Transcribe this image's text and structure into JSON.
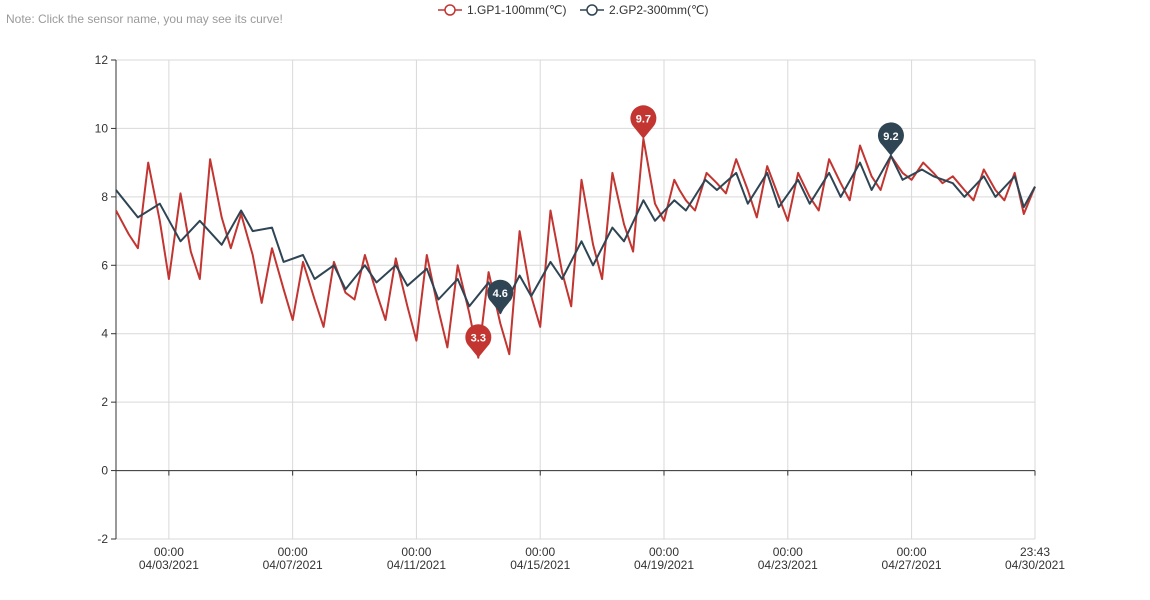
{
  "note": "Note: Click the sensor name, you may see its curve!",
  "colors": {
    "series1": "#c23531",
    "series2": "#2f4554",
    "grid": "#d9d9d9",
    "axis": "#333333"
  },
  "chart_data": {
    "type": "line",
    "title": "",
    "xlabel": "",
    "ylabel": "",
    "ylim": [
      -2,
      12
    ],
    "yticks": [
      -2,
      0,
      2,
      4,
      6,
      8,
      10,
      12
    ],
    "xlim": [
      "2021-04-01T07:00",
      "2021-04-30T23:43"
    ],
    "xticks": [
      {
        "time": "2021-04-03T00:00",
        "label1": "00:00",
        "label2": "04/03/2021"
      },
      {
        "time": "2021-04-07T00:00",
        "label1": "00:00",
        "label2": "04/07/2021"
      },
      {
        "time": "2021-04-11T00:00",
        "label1": "00:00",
        "label2": "04/11/2021"
      },
      {
        "time": "2021-04-15T00:00",
        "label1": "00:00",
        "label2": "04/15/2021"
      },
      {
        "time": "2021-04-19T00:00",
        "label1": "00:00",
        "label2": "04/19/2021"
      },
      {
        "time": "2021-04-23T00:00",
        "label1": "00:00",
        "label2": "04/23/2021"
      },
      {
        "time": "2021-04-27T00:00",
        "label1": "00:00",
        "label2": "04/27/2021"
      },
      {
        "time": "2021-04-30T23:43",
        "label1": "23:43",
        "label2": "04/30/2021"
      }
    ],
    "grid": true,
    "legend_position": "top-center",
    "series": [
      {
        "name": "1.GP1-100mm(℃)",
        "color": "#c23531",
        "points": [
          [
            "2021-04-01T07:00",
            7.6
          ],
          [
            "2021-04-01T17:00",
            6.9
          ],
          [
            "2021-04-02T00:00",
            6.5
          ],
          [
            "2021-04-02T08:00",
            9.0
          ],
          [
            "2021-04-02T17:00",
            7.3
          ],
          [
            "2021-04-03T00:00",
            5.6
          ],
          [
            "2021-04-03T09:00",
            8.1
          ],
          [
            "2021-04-03T17:00",
            6.4
          ],
          [
            "2021-04-04T00:00",
            5.6
          ],
          [
            "2021-04-04T08:00",
            9.1
          ],
          [
            "2021-04-04T17:00",
            7.4
          ],
          [
            "2021-04-05T00:00",
            6.5
          ],
          [
            "2021-04-05T08:00",
            7.5
          ],
          [
            "2021-04-05T17:00",
            6.3
          ],
          [
            "2021-04-06T00:00",
            4.9
          ],
          [
            "2021-04-06T08:00",
            6.5
          ],
          [
            "2021-04-06T17:00",
            5.3
          ],
          [
            "2021-04-07T00:00",
            4.4
          ],
          [
            "2021-04-07T08:00",
            6.1
          ],
          [
            "2021-04-07T17:00",
            5.0
          ],
          [
            "2021-04-08T00:00",
            4.2
          ],
          [
            "2021-04-08T08:00",
            6.1
          ],
          [
            "2021-04-08T17:00",
            5.2
          ],
          [
            "2021-04-09T00:00",
            5.0
          ],
          [
            "2021-04-09T08:00",
            6.3
          ],
          [
            "2021-04-09T17:00",
            5.2
          ],
          [
            "2021-04-10T00:00",
            4.4
          ],
          [
            "2021-04-10T08:00",
            6.2
          ],
          [
            "2021-04-10T17:00",
            4.8
          ],
          [
            "2021-04-11T00:00",
            3.8
          ],
          [
            "2021-04-11T08:00",
            6.3
          ],
          [
            "2021-04-11T17:00",
            4.7
          ],
          [
            "2021-04-12T00:00",
            3.6
          ],
          [
            "2021-04-12T08:00",
            6.0
          ],
          [
            "2021-04-12T17:00",
            4.6
          ],
          [
            "2021-04-13T00:00",
            3.3
          ],
          [
            "2021-04-13T08:00",
            5.8
          ],
          [
            "2021-04-13T17:00",
            4.3
          ],
          [
            "2021-04-14T00:00",
            3.4
          ],
          [
            "2021-04-14T08:00",
            7.0
          ],
          [
            "2021-04-14T17:00",
            5.1
          ],
          [
            "2021-04-15T00:00",
            4.2
          ],
          [
            "2021-04-15T08:00",
            7.6
          ],
          [
            "2021-04-15T17:00",
            5.8
          ],
          [
            "2021-04-16T00:00",
            4.8
          ],
          [
            "2021-04-16T08:00",
            8.5
          ],
          [
            "2021-04-16T17:00",
            6.6
          ],
          [
            "2021-04-17T00:00",
            5.6
          ],
          [
            "2021-04-17T08:00",
            8.7
          ],
          [
            "2021-04-17T17:00",
            7.2
          ],
          [
            "2021-04-18T00:00",
            6.4
          ],
          [
            "2021-04-18T08:00",
            9.7
          ],
          [
            "2021-04-18T17:00",
            7.8
          ],
          [
            "2021-04-19T00:00",
            7.3
          ],
          [
            "2021-04-19T08:00",
            8.5
          ],
          [
            "2021-04-19T12:00",
            8.2
          ],
          [
            "2021-04-19T17:00",
            7.9
          ],
          [
            "2021-04-20T00:00",
            7.6
          ],
          [
            "2021-04-20T09:00",
            8.7
          ],
          [
            "2021-04-20T17:00",
            8.4
          ],
          [
            "2021-04-21T00:00",
            8.1
          ],
          [
            "2021-04-21T08:00",
            9.1
          ],
          [
            "2021-04-21T17:00",
            8.2
          ],
          [
            "2021-04-22T00:00",
            7.4
          ],
          [
            "2021-04-22T08:00",
            8.9
          ],
          [
            "2021-04-22T17:00",
            8.0
          ],
          [
            "2021-04-23T00:00",
            7.3
          ],
          [
            "2021-04-23T08:00",
            8.7
          ],
          [
            "2021-04-23T17:00",
            8.0
          ],
          [
            "2021-04-24T00:00",
            7.6
          ],
          [
            "2021-04-24T08:00",
            9.1
          ],
          [
            "2021-04-24T17:00",
            8.4
          ],
          [
            "2021-04-25T00:00",
            7.9
          ],
          [
            "2021-04-25T08:00",
            9.5
          ],
          [
            "2021-04-25T17:00",
            8.6
          ],
          [
            "2021-04-26T00:00",
            8.2
          ],
          [
            "2021-04-26T08:00",
            9.2
          ],
          [
            "2021-04-26T17:00",
            8.7
          ],
          [
            "2021-04-27T00:00",
            8.5
          ],
          [
            "2021-04-27T09:00",
            9.0
          ],
          [
            "2021-04-27T17:00",
            8.7
          ],
          [
            "2021-04-28T00:00",
            8.4
          ],
          [
            "2021-04-28T08:00",
            8.6
          ],
          [
            "2021-04-28T17:00",
            8.2
          ],
          [
            "2021-04-29T00:00",
            7.9
          ],
          [
            "2021-04-29T08:00",
            8.8
          ],
          [
            "2021-04-29T17:00",
            8.2
          ],
          [
            "2021-04-30T00:00",
            7.9
          ],
          [
            "2021-04-30T08:00",
            8.7
          ],
          [
            "2021-04-30T15:00",
            7.5
          ],
          [
            "2021-04-30T23:43",
            8.3
          ]
        ],
        "marker_max": {
          "time": "2021-04-18T08:00",
          "value": 9.7,
          "label": "9.7"
        },
        "marker_min": {
          "time": "2021-04-13T00:00",
          "value": 3.3,
          "label": "3.3"
        }
      },
      {
        "name": "2.GP2-300mm(℃)",
        "color": "#2f4554",
        "points": [
          [
            "2021-04-01T07:00",
            8.2
          ],
          [
            "2021-04-02T00:00",
            7.4
          ],
          [
            "2021-04-02T17:00",
            7.8
          ],
          [
            "2021-04-03T09:00",
            6.7
          ],
          [
            "2021-04-04T00:00",
            7.3
          ],
          [
            "2021-04-04T17:00",
            6.6
          ],
          [
            "2021-04-05T08:00",
            7.6
          ],
          [
            "2021-04-05T17:00",
            7.0
          ],
          [
            "2021-04-06T08:00",
            7.1
          ],
          [
            "2021-04-06T17:00",
            6.1
          ],
          [
            "2021-04-07T08:00",
            6.3
          ],
          [
            "2021-04-07T17:00",
            5.6
          ],
          [
            "2021-04-08T08:00",
            6.0
          ],
          [
            "2021-04-08T17:00",
            5.3
          ],
          [
            "2021-04-09T08:00",
            6.0
          ],
          [
            "2021-04-09T17:00",
            5.5
          ],
          [
            "2021-04-10T08:00",
            6.0
          ],
          [
            "2021-04-10T17:00",
            5.4
          ],
          [
            "2021-04-11T08:00",
            5.9
          ],
          [
            "2021-04-11T17:00",
            5.0
          ],
          [
            "2021-04-12T08:00",
            5.6
          ],
          [
            "2021-04-12T17:00",
            4.8
          ],
          [
            "2021-04-13T08:00",
            5.5
          ],
          [
            "2021-04-13T17:00",
            4.6
          ],
          [
            "2021-04-14T08:00",
            5.7
          ],
          [
            "2021-04-14T17:00",
            5.1
          ],
          [
            "2021-04-15T08:00",
            6.1
          ],
          [
            "2021-04-15T17:00",
            5.6
          ],
          [
            "2021-04-16T08:00",
            6.7
          ],
          [
            "2021-04-16T17:00",
            6.0
          ],
          [
            "2021-04-17T08:00",
            7.1
          ],
          [
            "2021-04-17T17:00",
            6.7
          ],
          [
            "2021-04-18T08:00",
            7.9
          ],
          [
            "2021-04-18T17:00",
            7.3
          ],
          [
            "2021-04-19T08:00",
            7.9
          ],
          [
            "2021-04-19T17:00",
            7.6
          ],
          [
            "2021-04-20T08:00",
            8.5
          ],
          [
            "2021-04-20T17:00",
            8.2
          ],
          [
            "2021-04-21T08:00",
            8.7
          ],
          [
            "2021-04-21T17:00",
            7.8
          ],
          [
            "2021-04-22T08:00",
            8.7
          ],
          [
            "2021-04-22T17:00",
            7.7
          ],
          [
            "2021-04-23T08:00",
            8.5
          ],
          [
            "2021-04-23T17:00",
            7.8
          ],
          [
            "2021-04-24T08:00",
            8.7
          ],
          [
            "2021-04-24T17:00",
            8.0
          ],
          [
            "2021-04-25T08:00",
            9.0
          ],
          [
            "2021-04-25T17:00",
            8.2
          ],
          [
            "2021-04-26T08:00",
            9.2
          ],
          [
            "2021-04-26T17:00",
            8.5
          ],
          [
            "2021-04-27T08:00",
            8.8
          ],
          [
            "2021-04-27T17:00",
            8.6
          ],
          [
            "2021-04-28T08:00",
            8.4
          ],
          [
            "2021-04-28T17:00",
            8.0
          ],
          [
            "2021-04-29T08:00",
            8.6
          ],
          [
            "2021-04-29T17:00",
            8.0
          ],
          [
            "2021-04-30T08:00",
            8.6
          ],
          [
            "2021-04-30T15:00",
            7.7
          ],
          [
            "2021-04-30T23:43",
            8.3
          ]
        ],
        "marker_max": {
          "time": "2021-04-26T08:00",
          "value": 9.2,
          "label": "9.2"
        },
        "marker_min": {
          "time": "2021-04-13T17:00",
          "value": 4.6,
          "label": "4.6"
        }
      }
    ]
  }
}
